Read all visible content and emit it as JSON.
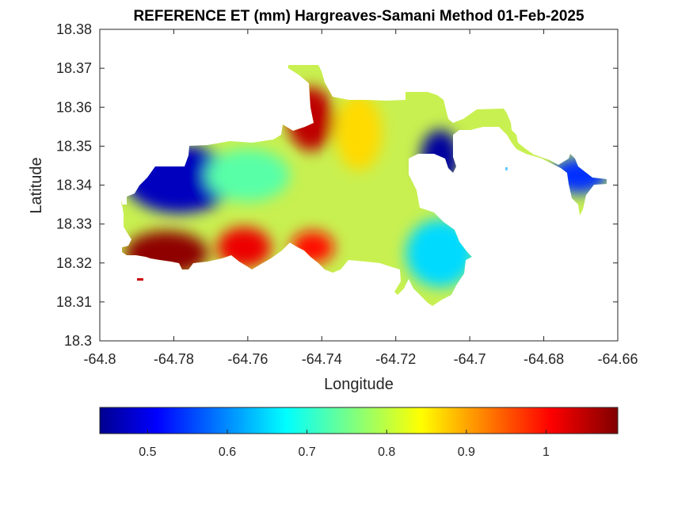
{
  "chart_data": {
    "type": "heatmap",
    "title": "REFERENCE ET (mm) Hargreaves-Samani Method  01-Feb-2025",
    "xlabel": "Longitude",
    "ylabel": "Latitude",
    "xlim": [
      -64.8,
      -64.66
    ],
    "ylim": [
      18.3,
      18.38
    ],
    "x_ticks": [
      "-64.8",
      "-64.78",
      "-64.76",
      "-64.74",
      "-64.72",
      "-64.7",
      "-64.68",
      "-64.66"
    ],
    "y_ticks": [
      "18.3",
      "18.31",
      "18.32",
      "18.33",
      "18.34",
      "18.35",
      "18.36",
      "18.37",
      "18.38"
    ],
    "colormap": "jet",
    "colorbar": {
      "location": "bottom",
      "clim": [
        0.44,
        1.09
      ],
      "ticks": [
        "0.5",
        "0.6",
        "0.7",
        "0.8",
        "0.9",
        "1"
      ]
    },
    "regions": [
      {
        "lon": [
          -64.792,
          -64.772
        ],
        "lat": [
          18.318,
          18.327
        ],
        "level": "high",
        "value": 1.08
      },
      {
        "lon": [
          -64.767,
          -64.755
        ],
        "lat": [
          18.32,
          18.328
        ],
        "level": "high",
        "value": 1.02
      },
      {
        "lon": [
          -64.747,
          -64.738
        ],
        "lat": [
          18.321,
          18.327
        ],
        "level": "high",
        "value": 1.0
      },
      {
        "lon": [
          -64.748,
          -64.738
        ],
        "lat": [
          18.35,
          18.364
        ],
        "level": "high",
        "value": 1.05
      },
      {
        "lon": [
          -64.792,
          -64.765
        ],
        "lat": [
          18.334,
          18.349
        ],
        "level": "low",
        "value": 0.48
      },
      {
        "lon": [
          -64.712,
          -64.704
        ],
        "lat": [
          18.341,
          18.353
        ],
        "level": "low",
        "value": 0.46
      },
      {
        "lon": [
          -64.677,
          -64.664
        ],
        "lat": [
          18.339,
          18.346
        ],
        "level": "low",
        "value": 0.55
      },
      {
        "lon": [
          -64.716,
          -64.7
        ],
        "lat": [
          18.315,
          18.33
        ],
        "level": "mid-low",
        "value": 0.66
      },
      {
        "lon": [
          -64.77,
          -64.75
        ],
        "lat": [
          18.337,
          18.348
        ],
        "level": "mid",
        "value": 0.74
      },
      {
        "lon": [
          -64.735,
          -64.725
        ],
        "lat": [
          18.345,
          18.362
        ],
        "level": "mid-high",
        "value": 0.87
      }
    ]
  }
}
